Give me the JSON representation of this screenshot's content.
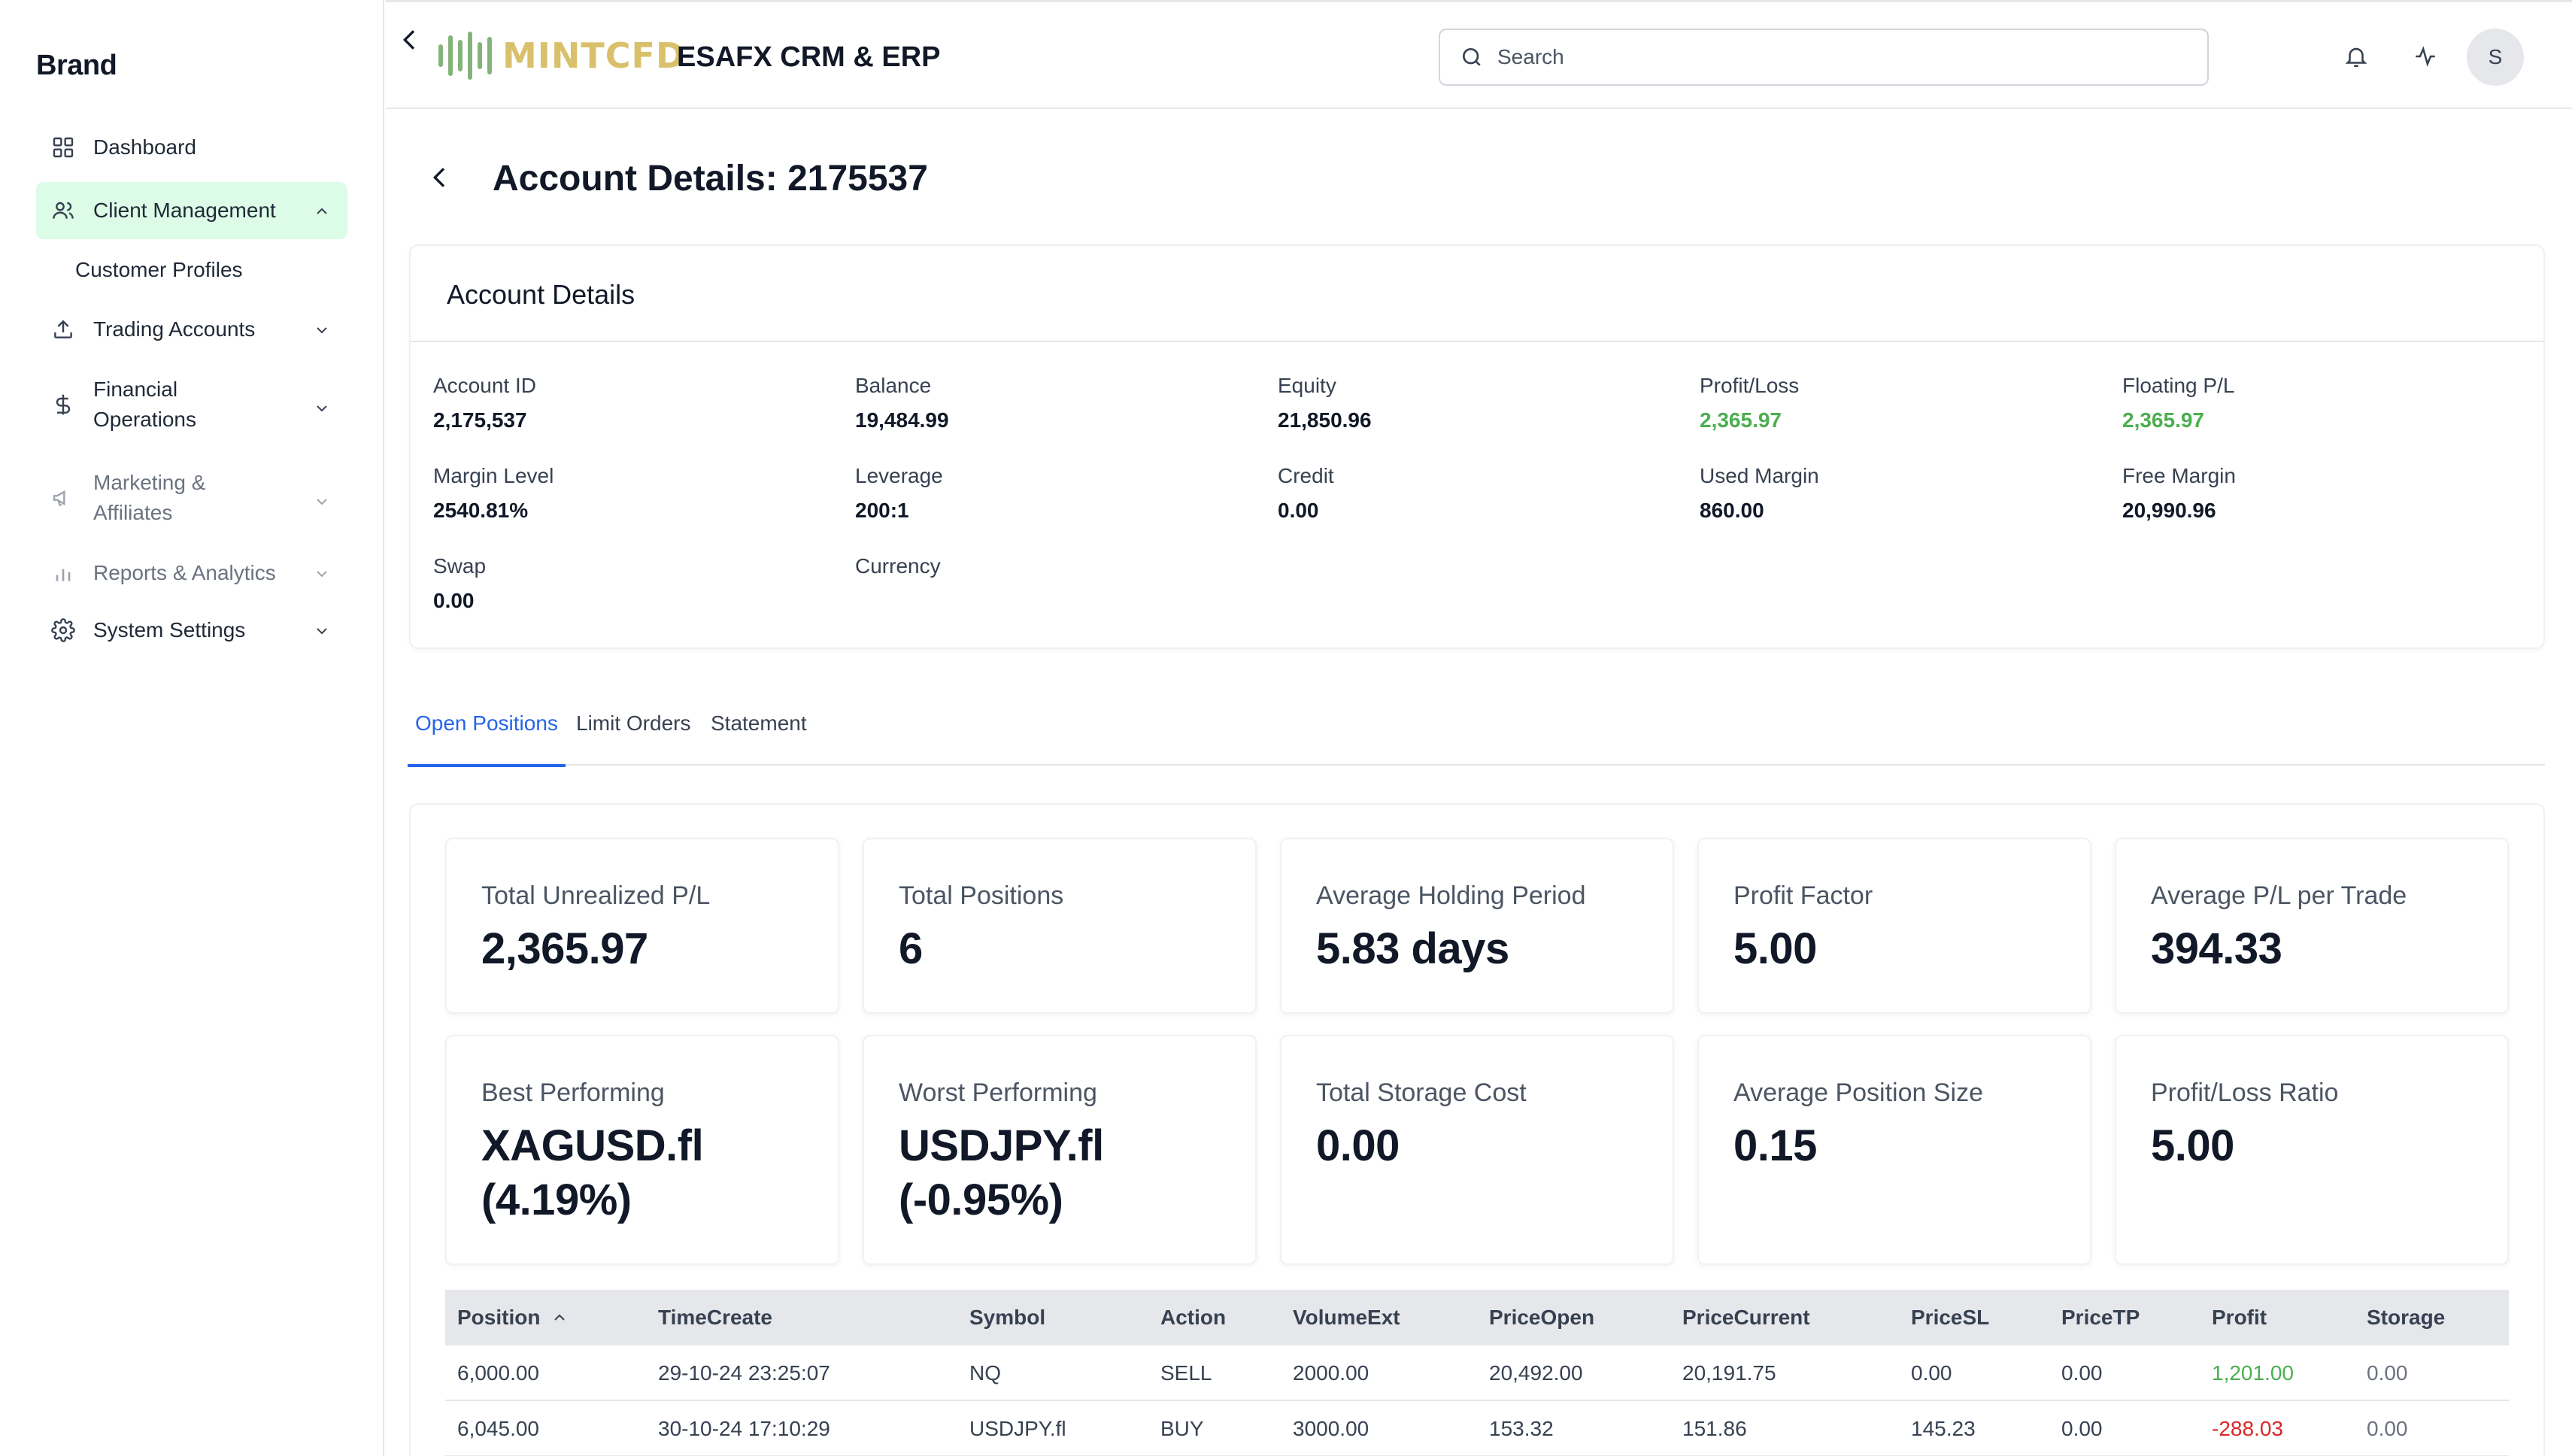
{
  "sidebar": {
    "brand": "Brand",
    "items": [
      {
        "label": "Dashboard",
        "icon": "grid-icon"
      },
      {
        "label": "Client Management",
        "icon": "users-icon"
      },
      {
        "label": "Customer Profiles"
      },
      {
        "label": "Trading Accounts",
        "icon": "upload-icon"
      },
      {
        "label": "Financial Operations",
        "line1": "Financial",
        "line2": "Operations",
        "icon": "dollar-icon"
      },
      {
        "label": "Marketing & Affiliates",
        "line1": "Marketing &",
        "line2": "Affiliates",
        "icon": "megaphone-icon"
      },
      {
        "label": "Reports & Analytics",
        "icon": "bar-chart-icon"
      },
      {
        "label": "System Settings",
        "icon": "gear-icon"
      }
    ]
  },
  "header": {
    "logo_text": "MINTCFD",
    "app_title": "ESAFX CRM & ERP",
    "search_placeholder": "Search",
    "avatar_initial": "S"
  },
  "page": {
    "title": "Account Details: 2175537"
  },
  "account_card": {
    "title": "Account Details",
    "fields": [
      {
        "label": "Account ID",
        "value": "2,175,537"
      },
      {
        "label": "Balance",
        "value": "19,484.99"
      },
      {
        "label": "Equity",
        "value": "21,850.96"
      },
      {
        "label": "Profit/Loss",
        "value": "2,365.97"
      },
      {
        "label": "Floating P/L",
        "value": "2,365.97"
      },
      {
        "label": "Margin Level",
        "value": "2540.81%"
      },
      {
        "label": "Leverage",
        "value": "200:1"
      },
      {
        "label": "Credit",
        "value": "0.00"
      },
      {
        "label": "Used Margin",
        "value": "860.00"
      },
      {
        "label": "Free Margin",
        "value": "20,990.96"
      },
      {
        "label": "Swap",
        "value": "0.00"
      },
      {
        "label": "Currency",
        "value": ""
      }
    ]
  },
  "tabs": [
    "Open Positions",
    "Limit Orders",
    "Statement"
  ],
  "stats": [
    {
      "label": "Total Unrealized P/L",
      "value": "2,365.97"
    },
    {
      "label": "Total Positions",
      "value": "6"
    },
    {
      "label": "Average Holding Period",
      "value": "5.83 days"
    },
    {
      "label": "Profit Factor",
      "value": "5.00"
    },
    {
      "label": "Average P/L per Trade",
      "value": "394.33"
    },
    {
      "label": "Best Performing",
      "value": "XAGUSD.fl",
      "value2": "(4.19%)"
    },
    {
      "label": "Worst Performing",
      "value": "USDJPY.fl",
      "value2": "(-0.95%)"
    },
    {
      "label": "Total Storage Cost",
      "value": "0.00"
    },
    {
      "label": "Average Position Size",
      "value": "0.15"
    },
    {
      "label": "Profit/Loss Ratio",
      "value": "5.00"
    }
  ],
  "table": {
    "columns": [
      "Position",
      "TimeCreate",
      "Symbol",
      "Action",
      "VolumeExt",
      "PriceOpen",
      "PriceCurrent",
      "PriceSL",
      "PriceTP",
      "Profit",
      "Storage"
    ],
    "rows": [
      [
        "6,000.00",
        "29-10-24 23:25:07",
        "NQ",
        "SELL",
        "2000.00",
        "20,492.00",
        "20,191.75",
        "0.00",
        "0.00",
        "1,201.00",
        "0.00"
      ],
      [
        "6,045.00",
        "30-10-24 17:10:29",
        "USDJPY.fl",
        "BUY",
        "3000.00",
        "153.32",
        "151.86",
        "145.23",
        "0.00",
        "-288.03",
        "0.00"
      ]
    ]
  },
  "colors": {
    "accent": "#2563eb",
    "active_nav_bg": "#dcfce7",
    "positive": "#4caf50",
    "negative": "#dc2626"
  }
}
